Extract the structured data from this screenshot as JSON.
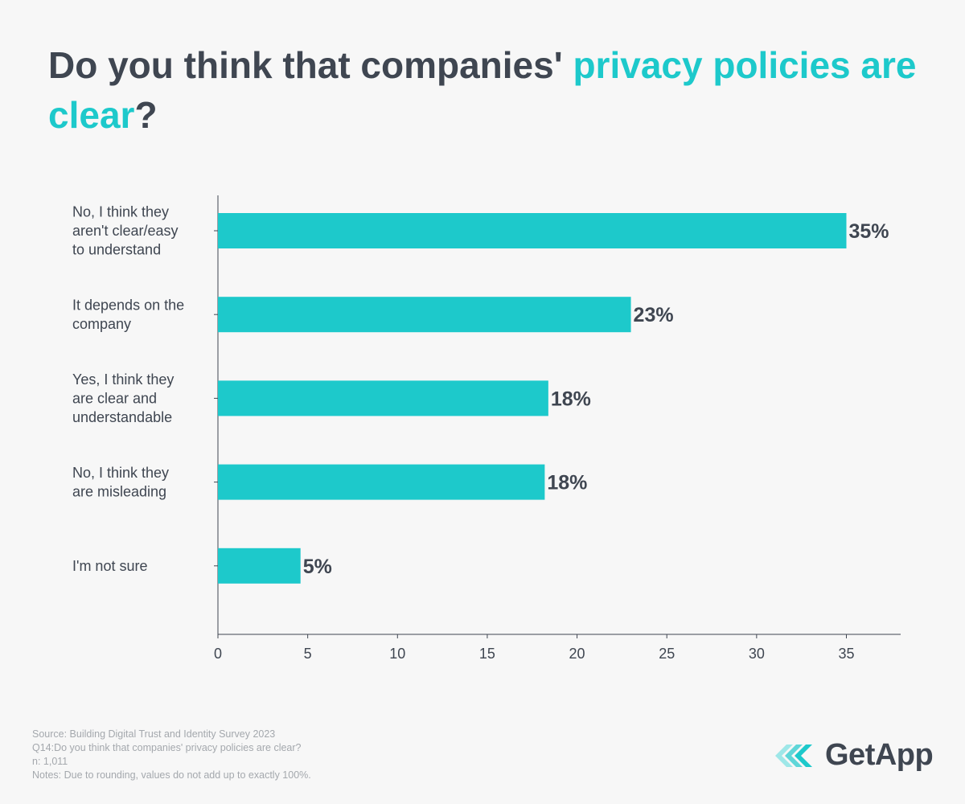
{
  "title": {
    "part1": "Do you think that companies' ",
    "accent": "privacy policies are clear",
    "part2": "?"
  },
  "colors": {
    "bar": "#1dc9cb",
    "text": "#3f4651",
    "accent": "#1dc9cb",
    "footer": "#a4a8ad"
  },
  "chart_data": {
    "type": "bar",
    "orientation": "horizontal",
    "categories": [
      "No, I think they aren't clear/easy to understand",
      "It depends on the company",
      "Yes, I think they are clear and understandable",
      "No, I think they are misleading",
      "I'm not sure"
    ],
    "category_lines": [
      [
        "No, I think they",
        "aren't clear/easy",
        "to understand"
      ],
      [
        "It depends on the",
        "company"
      ],
      [
        "Yes, I think they",
        "are clear and",
        "understandable"
      ],
      [
        "No, I think they",
        "are misleading"
      ],
      [
        "I'm not sure"
      ]
    ],
    "values": [
      35,
      23,
      18.4,
      18.2,
      4.6
    ],
    "data_labels": [
      "35%",
      "23%",
      "18%",
      "18%",
      "5%"
    ],
    "xticks": [
      0,
      5,
      10,
      15,
      20,
      25,
      30,
      35
    ],
    "xlim": [
      0,
      38
    ],
    "title": "Do you think that companies' privacy policies are clear?",
    "xlabel": "",
    "ylabel": ""
  },
  "footer": {
    "source": "Source: Building Digital Trust and Identity Survey 2023",
    "question": "Q14:Do you think that companies' privacy policies are clear?",
    "n": "n: 1,011",
    "notes": "Notes: Due to rounding, values do not add up to exactly 100%."
  },
  "logo": {
    "text": "GetApp",
    "icon": "getapp-chevron-icon"
  }
}
